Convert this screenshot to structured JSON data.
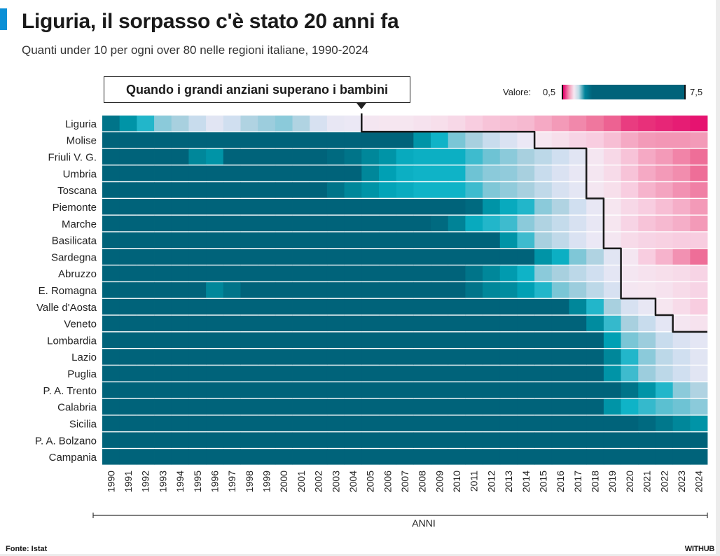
{
  "header": {
    "title": "Liguria, il sorpasso c'è stato 20 anni fa",
    "subtitle": "Quanti under 10 per ogni over 80 nelle regioni italiane, 1990-2024"
  },
  "annotation": "Quando i grandi anziani superano i bambini",
  "legend": {
    "label": "Valore:",
    "min_label": "0,5",
    "max_label": "7,5"
  },
  "footer": {
    "source": "Fonte: Istat",
    "brand": "WITHUB"
  },
  "colors": {
    "low": "#e4006a",
    "mid": "#f3eaf4",
    "high": "#00637a",
    "accent": "#0a8fd6"
  },
  "chart_data": {
    "type": "heatmap",
    "title": "Liguria, il sorpasso c'è stato 20 anni fa",
    "xlabel": "ANNI",
    "ylabel": "",
    "value_range": [
      0.5,
      7.5
    ],
    "threshold": 1,
    "x": [
      1990,
      1991,
      1992,
      1993,
      1994,
      1995,
      1996,
      1997,
      1998,
      1999,
      2000,
      2001,
      2002,
      2003,
      2004,
      2005,
      2006,
      2007,
      2008,
      2009,
      2010,
      2011,
      2012,
      2013,
      2014,
      2015,
      2016,
      2017,
      2018,
      2019,
      2020,
      2021,
      2022,
      2023,
      2024
    ],
    "rows": [
      {
        "name": "Liguria",
        "values": [
          1.7,
          1.55,
          1.38,
          1.25,
          1.2,
          1.12,
          1.05,
          1.1,
          1.18,
          1.22,
          1.25,
          1.18,
          1.08,
          1.03,
          1.02,
          0.98,
          0.97,
          0.97,
          0.96,
          0.95,
          0.93,
          0.9,
          0.88,
          0.87,
          0.86,
          0.83,
          0.8,
          0.76,
          0.72,
          0.68,
          0.62,
          0.6,
          0.58,
          0.56,
          0.54
        ]
      },
      {
        "name": "Molise",
        "values": [
          2,
          2,
          2,
          2,
          2,
          2,
          2,
          2,
          2,
          2,
          2,
          2,
          2,
          2,
          2,
          2,
          2,
          2,
          1.55,
          1.4,
          1.28,
          1.2,
          1.12,
          1.07,
          1.02,
          0.97,
          0.95,
          0.92,
          0.9,
          0.87,
          0.83,
          0.8,
          0.79,
          0.79,
          0.8
        ]
      },
      {
        "name": "Friuli V. G.",
        "values": [
          2,
          2,
          2,
          2,
          2,
          1.6,
          1.55,
          2,
          2,
          2,
          2,
          2,
          2,
          1.75,
          1.7,
          1.6,
          1.55,
          1.45,
          1.42,
          1.42,
          1.42,
          1.35,
          1.3,
          1.25,
          1.2,
          1.15,
          1.1,
          1.05,
          0.98,
          0.93,
          0.88,
          0.83,
          0.8,
          0.75,
          0.7
        ]
      },
      {
        "name": "Umbria",
        "values": [
          2,
          2,
          2,
          2,
          2,
          2,
          2,
          2,
          2,
          2,
          2,
          2,
          2,
          2,
          2,
          1.6,
          1.5,
          1.42,
          1.4,
          1.4,
          1.4,
          1.3,
          1.25,
          1.24,
          1.2,
          1.12,
          1.07,
          1.03,
          0.98,
          0.94,
          0.88,
          0.83,
          0.8,
          0.77,
          0.7
        ]
      },
      {
        "name": "Toscana",
        "values": [
          2,
          2,
          2,
          2,
          2,
          2,
          2,
          2,
          2,
          2,
          2,
          2,
          2,
          1.7,
          1.6,
          1.55,
          1.48,
          1.44,
          1.4,
          1.4,
          1.4,
          1.35,
          1.27,
          1.24,
          1.2,
          1.14,
          1.08,
          1.04,
          0.98,
          0.95,
          0.9,
          0.85,
          0.82,
          0.78,
          0.74
        ]
      },
      {
        "name": "Piemonte",
        "values": [
          2,
          2,
          2,
          2,
          2,
          2,
          2,
          2,
          2,
          2,
          2,
          2,
          2,
          2,
          2,
          2,
          2,
          2,
          2,
          2,
          2,
          1.75,
          1.55,
          1.45,
          1.38,
          1.25,
          1.18,
          1.1,
          1.03,
          0.97,
          0.93,
          0.9,
          0.87,
          0.84,
          0.8
        ]
      },
      {
        "name": "Marche",
        "values": [
          2,
          2,
          2,
          2,
          2,
          2,
          2,
          2,
          2,
          2,
          2,
          2,
          2,
          2,
          2,
          2,
          2,
          2,
          2,
          1.75,
          1.62,
          1.45,
          1.38,
          1.35,
          1.25,
          1.18,
          1.13,
          1.08,
          1.03,
          0.97,
          0.92,
          0.88,
          0.86,
          0.84,
          0.8
        ]
      },
      {
        "name": "Basilicata",
        "values": [
          2,
          2,
          2,
          2,
          2,
          2,
          2,
          2,
          2,
          2,
          2,
          2,
          2,
          2,
          2,
          2,
          2,
          2,
          2,
          2,
          2,
          2,
          2,
          1.55,
          1.35,
          1.2,
          1.14,
          1.07,
          1.02,
          0.98,
          0.94,
          0.92,
          0.91,
          0.9,
          0.9
        ]
      },
      {
        "name": "Sardegna",
        "values": [
          2,
          2,
          2,
          2,
          2,
          2,
          2,
          2,
          2,
          2,
          2,
          2,
          2,
          2,
          2,
          2,
          2,
          2,
          2,
          2,
          2,
          2,
          2,
          2,
          2,
          1.55,
          1.42,
          1.27,
          1.18,
          1.05,
          0.98,
          0.9,
          0.85,
          0.78,
          0.7
        ]
      },
      {
        "name": "Abruzzo",
        "values": [
          2,
          2,
          2,
          2,
          2,
          2,
          2,
          2,
          2,
          2,
          2,
          2,
          2,
          2,
          2,
          2,
          2,
          2,
          2,
          2,
          2,
          1.7,
          1.6,
          1.52,
          1.4,
          1.25,
          1.2,
          1.15,
          1.1,
          1.04,
          0.98,
          0.96,
          0.95,
          0.94,
          0.92
        ]
      },
      {
        "name": "E. Romagna",
        "values": [
          2,
          2,
          2,
          2,
          2,
          2,
          1.6,
          1.7,
          2,
          2,
          2,
          2,
          2,
          2,
          2,
          2,
          2,
          2,
          2,
          2,
          2,
          1.7,
          1.6,
          1.58,
          1.5,
          1.38,
          1.28,
          1.22,
          1.15,
          1.08,
          0.98,
          0.97,
          0.96,
          0.94,
          0.92
        ]
      },
      {
        "name": "Valle d'Aosta",
        "values": [
          2,
          2,
          2,
          2,
          2,
          2,
          2,
          2,
          2,
          2,
          2,
          2,
          2,
          2,
          2,
          2,
          2,
          2,
          2,
          2,
          2,
          2,
          2,
          2,
          2,
          2,
          2,
          1.6,
          1.38,
          1.2,
          1.08,
          1.03,
          0.97,
          0.94,
          0.9
        ]
      },
      {
        "name": "Veneto",
        "values": [
          2,
          2,
          2,
          2,
          2,
          2,
          2,
          2,
          2,
          2,
          2,
          2,
          2,
          2,
          2,
          2,
          2,
          2,
          2,
          2,
          2,
          2,
          2,
          2,
          2,
          2,
          2,
          2,
          1.58,
          1.36,
          1.2,
          1.12,
          1.04,
          0.98,
          0.96
        ]
      },
      {
        "name": "Lombardia",
        "values": [
          2,
          2,
          2,
          2,
          2,
          2,
          2,
          2,
          2,
          2,
          2,
          2,
          2,
          2,
          2,
          2,
          2,
          2,
          2,
          2,
          2,
          2,
          2,
          2,
          2,
          2,
          2,
          2,
          2,
          1.5,
          1.28,
          1.22,
          1.12,
          1.07,
          1.04
        ]
      },
      {
        "name": "Lazio",
        "values": [
          2,
          2,
          2,
          2,
          2,
          2,
          2,
          2,
          2,
          2,
          2,
          2,
          2,
          2,
          2,
          2,
          2,
          2,
          2,
          2,
          2,
          2,
          2,
          2,
          2,
          2,
          2,
          2,
          2,
          1.6,
          1.38,
          1.25,
          1.15,
          1.1,
          1.05
        ]
      },
      {
        "name": "Puglia",
        "values": [
          2,
          2,
          2,
          2,
          2,
          2,
          2,
          2,
          2,
          2,
          2,
          2,
          2,
          2,
          2,
          2,
          2,
          2,
          2,
          2,
          2,
          2,
          2,
          2,
          2,
          2,
          2,
          2,
          2,
          1.55,
          1.35,
          1.22,
          1.15,
          1.1,
          1.05
        ]
      },
      {
        "name": "P. A. Trento",
        "values": [
          2,
          2,
          2,
          2,
          2,
          2,
          2,
          2,
          2,
          2,
          2,
          2,
          2,
          2,
          2,
          2,
          2,
          2,
          2,
          2,
          2,
          2,
          2,
          2,
          2,
          2,
          2,
          2,
          2,
          2,
          1.7,
          1.55,
          1.38,
          1.25,
          1.18
        ]
      },
      {
        "name": "Calabria",
        "values": [
          2,
          2,
          2,
          2,
          2,
          2,
          2,
          2,
          2,
          2,
          2,
          2,
          2,
          2,
          2,
          2,
          2,
          2,
          2,
          2,
          2,
          2,
          2,
          2,
          2,
          2,
          2,
          2,
          2,
          1.55,
          1.4,
          1.36,
          1.32,
          1.3,
          1.25
        ]
      },
      {
        "name": "Sicilia",
        "values": [
          2,
          2,
          2,
          2,
          2,
          2,
          2,
          2,
          2,
          2,
          2,
          2,
          2,
          2,
          2,
          2,
          2,
          2,
          2,
          2,
          2,
          2,
          2,
          2,
          2,
          2,
          2,
          2,
          2,
          2,
          2,
          1.75,
          1.68,
          1.6,
          1.55
        ]
      },
      {
        "name": "P. A. Bolzano",
        "values": [
          2,
          2,
          2,
          2,
          2,
          2,
          2,
          2,
          2,
          2,
          2,
          2,
          2,
          2,
          2,
          2,
          2,
          2,
          2,
          2,
          2,
          2,
          2,
          2,
          2,
          2,
          2,
          2,
          2,
          2,
          2,
          2,
          2,
          2,
          2
        ]
      },
      {
        "name": "Campania",
        "values": [
          2,
          2,
          2,
          2,
          2,
          2,
          2,
          2,
          2,
          2,
          2,
          2,
          2,
          2,
          2,
          2,
          2,
          2,
          2,
          2,
          2,
          2,
          2,
          2,
          2,
          2,
          2,
          2,
          2,
          2,
          2,
          2,
          2,
          2,
          2
        ]
      }
    ]
  }
}
